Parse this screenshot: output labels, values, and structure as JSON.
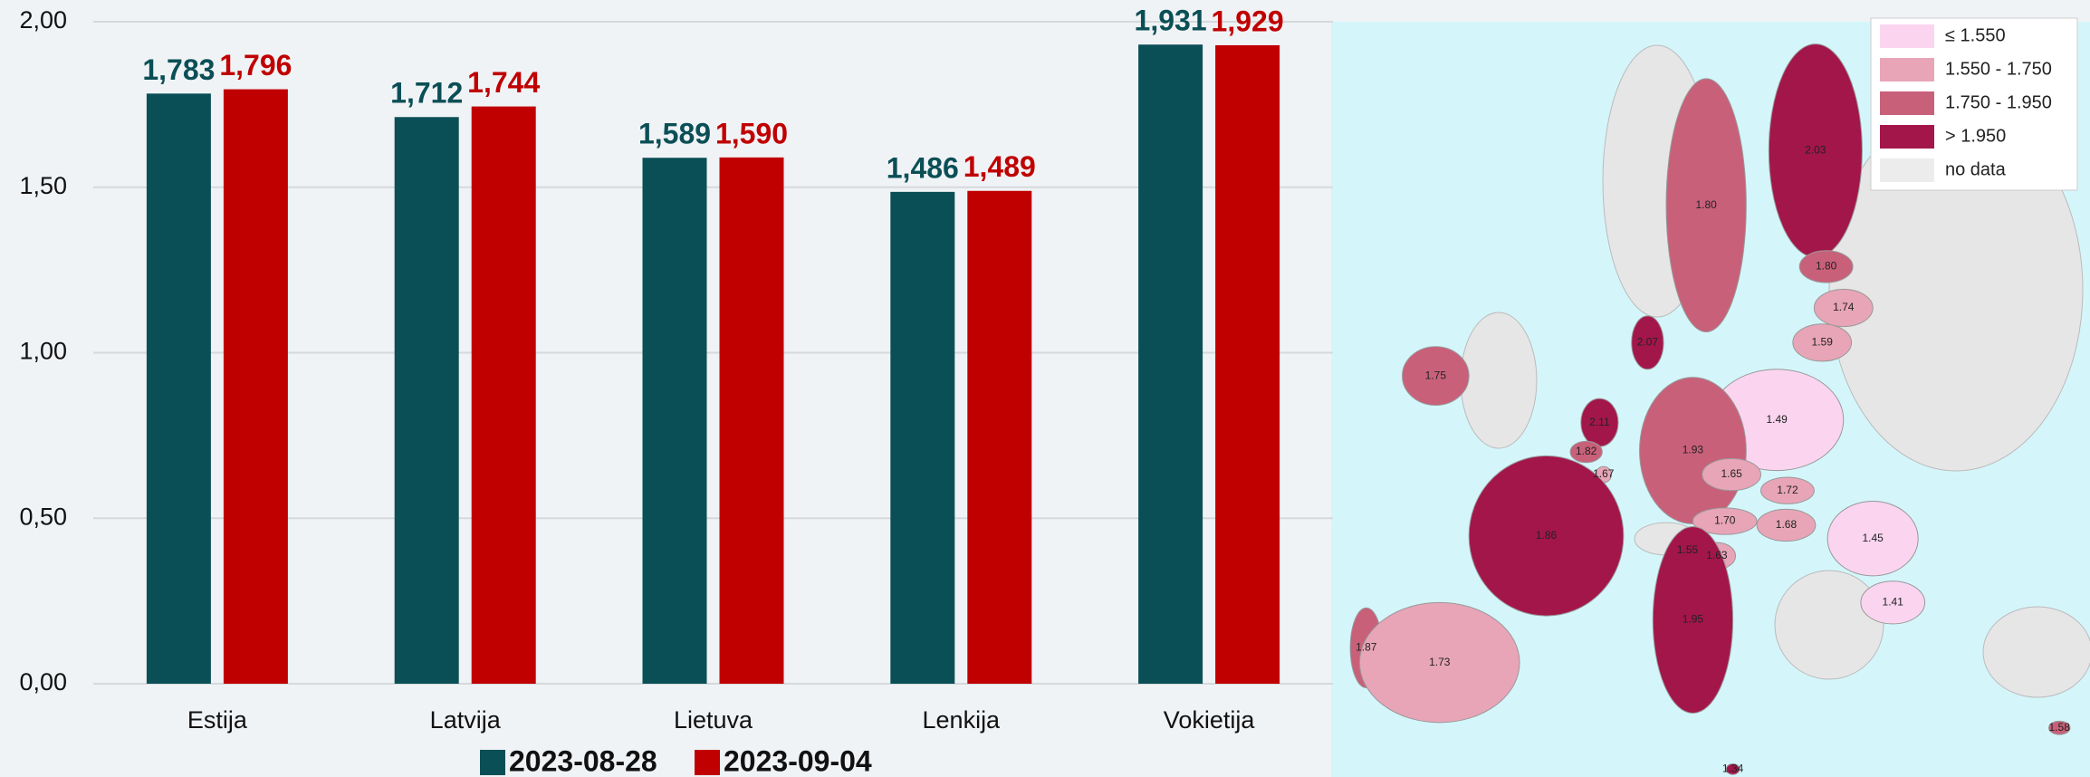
{
  "chart_data": {
    "type": "bar",
    "categories": [
      "Estija",
      "Latvija",
      "Lietuva",
      "Lenkija",
      "Vokietija"
    ],
    "series": [
      {
        "name": "2023-08-28",
        "color": "#0b4f56",
        "values": [
          1.783,
          1.712,
          1.589,
          1.486,
          1.931
        ],
        "value_labels": [
          "1,783",
          "1,712",
          "1,589",
          "1,486",
          "1,931"
        ]
      },
      {
        "name": "2023-09-04",
        "color": "#c00000",
        "values": [
          1.796,
          1.744,
          1.59,
          1.489,
          1.929
        ],
        "value_labels": [
          "1,796",
          "1,744",
          "1,590",
          "1,489",
          "1,929"
        ]
      }
    ],
    "ylim": [
      0,
      2
    ],
    "yticks": [
      {
        "value": 0,
        "label": "0,00"
      },
      {
        "value": 0.5,
        "label": "0,50"
      },
      {
        "value": 1,
        "label": "1,00"
      },
      {
        "value": 1.5,
        "label": "1,50"
      },
      {
        "value": 2,
        "label": "2,00"
      }
    ],
    "grid": true,
    "legend": "bottom"
  },
  "map": {
    "legend": [
      {
        "label": "≤ 1.550",
        "color": "#fbd5f0"
      },
      {
        "label": "1.550 - 1.750",
        "color": "#e8a5b7"
      },
      {
        "label": "1.750 - 1.950",
        "color": "#c9607a"
      },
      {
        "label": "> 1.950",
        "color": "#a3164a"
      },
      {
        "label": "no data",
        "color": "#ececec"
      }
    ],
    "regions": [
      {
        "label": "2.03",
        "color": "#a3164a"
      },
      {
        "label": "1.80",
        "color": "#c9607a"
      },
      {
        "label": "1.80",
        "color": "#c9607a"
      },
      {
        "label": "1.74",
        "color": "#e8a5b7"
      },
      {
        "label": "1.59",
        "color": "#e8a5b7"
      },
      {
        "label": "2.07",
        "color": "#a3164a"
      },
      {
        "label": "1.75",
        "color": "#c9607a"
      },
      {
        "label": "1.49",
        "color": "#fbd5f0"
      },
      {
        "label": "2.11",
        "color": "#a3164a"
      },
      {
        "label": "1.82",
        "color": "#c9607a"
      },
      {
        "label": "1.67",
        "color": "#e8a5b7"
      },
      {
        "label": "1.93",
        "color": "#c9607a"
      },
      {
        "label": "1.65",
        "color": "#e8a5b7"
      },
      {
        "label": "1.72",
        "color": "#e8a5b7"
      },
      {
        "label": "1.70",
        "color": "#e8a5b7"
      },
      {
        "label": "1.68",
        "color": "#e8a5b7"
      },
      {
        "label": "1.86",
        "color": "#a3164a"
      },
      {
        "label": "1.45",
        "color": "#fbd5f0"
      },
      {
        "label": "1.55",
        "color": "#e8a5b7"
      },
      {
        "label": "1.63",
        "color": "#e8a5b7"
      },
      {
        "label": "1.41",
        "color": "#fbd5f0"
      },
      {
        "label": "1.95",
        "color": "#a3164a"
      },
      {
        "label": "1.87",
        "color": "#c9607a"
      },
      {
        "label": "1.73",
        "color": "#e8a5b7"
      },
      {
        "label": "1.58",
        "color": "#c9607a"
      },
      {
        "label": "1.34",
        "color": "#a3164a"
      }
    ]
  }
}
